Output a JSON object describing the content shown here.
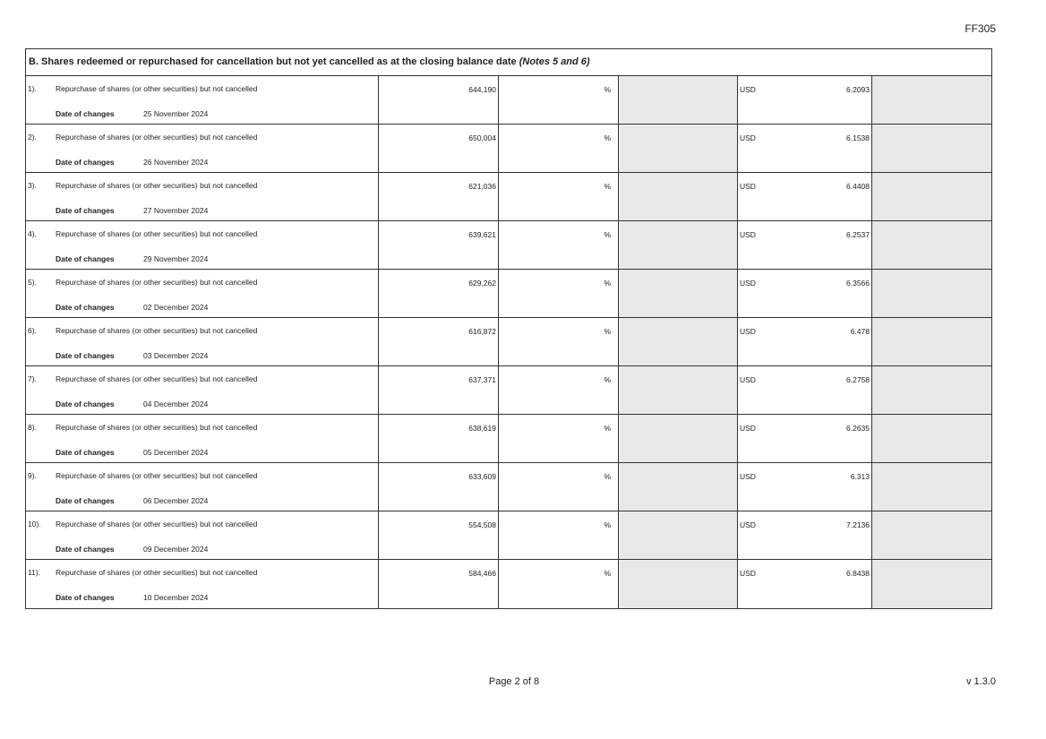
{
  "form_code": "FF305",
  "section": {
    "title": "B. Shares redeemed or repurchased for cancellation but not yet cancelled as at the closing balance date",
    "notes": "(Notes 5 and 6)"
  },
  "date_label": "Date of changes",
  "rows": [
    {
      "num": "1).",
      "desc": "Repurchase of shares (or other securities) but not cancelled",
      "amount": "644,190",
      "pct": "%",
      "currency": "USD",
      "price": "6.2093",
      "date": "25 November 2024"
    },
    {
      "num": "2).",
      "desc": "Repurchase of shares (or other securities) but not cancelled",
      "amount": "650,004",
      "pct": "%",
      "currency": "USD",
      "price": "6.1538",
      "date": "26 November 2024"
    },
    {
      "num": "3).",
      "desc": "Repurchase of shares (or other securities) but not cancelled",
      "amount": "621,036",
      "pct": "%",
      "currency": "USD",
      "price": "6.4408",
      "date": "27 November 2024"
    },
    {
      "num": "4).",
      "desc": "Repurchase of shares (or other securities) but not cancelled",
      "amount": "639,621",
      "pct": "%",
      "currency": "USD",
      "price": "6.2537",
      "date": "29 November 2024"
    },
    {
      "num": "5).",
      "desc": "Repurchase of shares (or other securities) but not cancelled",
      "amount": "629,262",
      "pct": "%",
      "currency": "USD",
      "price": "6.3566",
      "date": "02 December 2024"
    },
    {
      "num": "6).",
      "desc": "Repurchase of shares (or other securities) but not cancelled",
      "amount": "616,872",
      "pct": "%",
      "currency": "USD",
      "price": "6.478",
      "date": "03 December 2024"
    },
    {
      "num": "7).",
      "desc": "Repurchase of shares (or other securities) but not cancelled",
      "amount": "637,371",
      "pct": "%",
      "currency": "USD",
      "price": "6.2758",
      "date": "04 December 2024"
    },
    {
      "num": "8).",
      "desc": "Repurchase of shares (or other securities) but not cancelled",
      "amount": "638,619",
      "pct": "%",
      "currency": "USD",
      "price": "6.2635",
      "date": "05 December 2024"
    },
    {
      "num": "9).",
      "desc": "Repurchase of shares (or other securities) but not cancelled",
      "amount": "633,609",
      "pct": "%",
      "currency": "USD",
      "price": "6.313",
      "date": "06 December 2024"
    },
    {
      "num": "10).",
      "desc": "Repurchase of shares (or other securities) but not cancelled",
      "amount": "554,508",
      "pct": "%",
      "currency": "USD",
      "price": "7.2136",
      "date": "09 December 2024"
    },
    {
      "num": "11).",
      "desc": "Repurchase of shares (or other securities) but not cancelled",
      "amount": "584,466",
      "pct": "%",
      "currency": "USD",
      "price": "6.8438",
      "date": "10 December 2024"
    }
  ],
  "footer": {
    "page": "Page 2 of 8",
    "version": "v 1.3.0"
  }
}
